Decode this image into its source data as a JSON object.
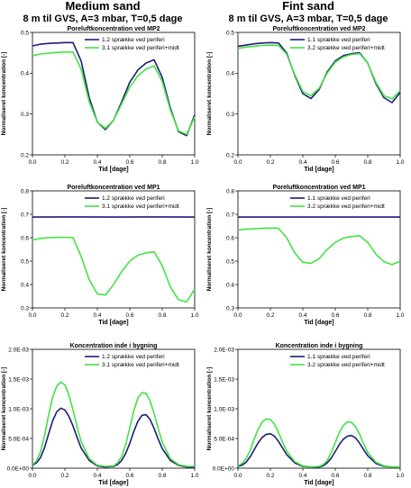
{
  "columns": {
    "left": {
      "title": "Medium sand",
      "subtitle": "8 m til GVS, A=3 mbar, T=0,5 dage"
    },
    "right": {
      "title": "Fint sand",
      "subtitle": "8 m til GVS, A=3 mbar, T=0,5 dage"
    }
  },
  "colors": {
    "blue": "#1c1c78",
    "green": "#44e244"
  },
  "chart_data": [
    {
      "id": "p1",
      "type": "line",
      "title": "Poreluftkoncentration ved MP2",
      "xlabel": "Tid [dage]",
      "ylabel": "Normaliseret koncentration [-]",
      "xlim": [
        0,
        1
      ],
      "ylim": [
        0.2,
        0.5
      ],
      "xticks": [
        "0.0",
        "0.2",
        "0.4",
        "0.6",
        "0.8",
        "1.0"
      ],
      "yticks": [
        "0.2",
        "0.3",
        "0.4",
        "0.5"
      ],
      "legend": "top-right",
      "series": [
        {
          "name": "1.2 sprække ved periferi",
          "color": "#1c1c78",
          "x": [
            0,
            0.05,
            0.1,
            0.15,
            0.2,
            0.25,
            0.3,
            0.35,
            0.4,
            0.45,
            0.5,
            0.55,
            0.6,
            0.65,
            0.7,
            0.75,
            0.8,
            0.85,
            0.9,
            0.95,
            1.0
          ],
          "y": [
            0.467,
            0.471,
            0.473,
            0.474,
            0.475,
            0.475,
            0.43,
            0.34,
            0.28,
            0.262,
            0.285,
            0.33,
            0.378,
            0.408,
            0.425,
            0.433,
            0.39,
            0.315,
            0.257,
            0.247,
            0.298
          ]
        },
        {
          "name": "3.1 sprække ved periferi+midt",
          "color": "#44e244",
          "x": [
            0,
            0.05,
            0.1,
            0.15,
            0.2,
            0.25,
            0.3,
            0.35,
            0.4,
            0.45,
            0.5,
            0.55,
            0.6,
            0.65,
            0.7,
            0.75,
            0.8,
            0.85,
            0.9,
            0.95,
            1.0
          ],
          "y": [
            0.443,
            0.447,
            0.449,
            0.451,
            0.452,
            0.452,
            0.41,
            0.33,
            0.28,
            0.265,
            0.285,
            0.325,
            0.366,
            0.394,
            0.41,
            0.418,
            0.38,
            0.31,
            0.259,
            0.25,
            0.293
          ]
        }
      ]
    },
    {
      "id": "p2",
      "type": "line",
      "title": "Poreluftkoncentration ved MP2",
      "xlabel": "Tid [dage]",
      "ylabel": "Normaliseret koncentration [-]",
      "xlim": [
        0,
        1
      ],
      "ylim": [
        0.2,
        0.5
      ],
      "xticks": [
        "0.0",
        "0.2",
        "0.4",
        "0.6",
        "0.8",
        "1.0"
      ],
      "yticks": [
        "0.2",
        "0.3",
        "0.4",
        "0.5"
      ],
      "legend": "top-right",
      "series": [
        {
          "name": "1.1 sprække ved periferi",
          "color": "#1c1c78",
          "x": [
            0,
            0.05,
            0.1,
            0.15,
            0.2,
            0.25,
            0.3,
            0.35,
            0.4,
            0.45,
            0.5,
            0.55,
            0.6,
            0.65,
            0.7,
            0.75,
            0.8,
            0.85,
            0.9,
            0.95,
            1.0
          ],
          "y": [
            0.466,
            0.469,
            0.472,
            0.474,
            0.475,
            0.474,
            0.45,
            0.395,
            0.35,
            0.338,
            0.36,
            0.403,
            0.43,
            0.443,
            0.448,
            0.45,
            0.425,
            0.375,
            0.34,
            0.328,
            0.353
          ]
        },
        {
          "name": "3.2 sprække ved periferi+midt",
          "color": "#44e244",
          "x": [
            0,
            0.05,
            0.1,
            0.15,
            0.2,
            0.25,
            0.3,
            0.35,
            0.4,
            0.45,
            0.5,
            0.55,
            0.6,
            0.65,
            0.7,
            0.75,
            0.8,
            0.85,
            0.9,
            0.95,
            1.0
          ],
          "y": [
            0.461,
            0.464,
            0.466,
            0.468,
            0.469,
            0.468,
            0.447,
            0.397,
            0.355,
            0.345,
            0.363,
            0.4,
            0.427,
            0.44,
            0.446,
            0.448,
            0.425,
            0.378,
            0.345,
            0.337,
            0.358
          ]
        }
      ]
    },
    {
      "id": "p3",
      "type": "line",
      "title": "Poreluftkoncentration ved MP1",
      "xlabel": "Tid [dage]",
      "ylabel": "Normaliseret koncentration [-]",
      "xlim": [
        0,
        1
      ],
      "ylim": [
        0.3,
        0.8
      ],
      "xticks": [
        "0.0",
        "0.2",
        "0.4",
        "0.6",
        "0.8",
        "1.0"
      ],
      "yticks": [
        "0.3",
        "0.4",
        "0.5",
        "0.6",
        "0.7",
        "0.8"
      ],
      "legend": "top-right",
      "series": [
        {
          "name": "1.2 sprække ved periferi",
          "color": "#1c1c78",
          "x": [
            0,
            0.25,
            0.5,
            0.75,
            1.0
          ],
          "y": [
            0.688,
            0.689,
            0.688,
            0.689,
            0.688
          ]
        },
        {
          "name": "3.1 sprække ved periferi+midt",
          "color": "#44e244",
          "x": [
            0,
            0.05,
            0.1,
            0.15,
            0.2,
            0.25,
            0.3,
            0.35,
            0.4,
            0.45,
            0.5,
            0.55,
            0.6,
            0.65,
            0.7,
            0.75,
            0.8,
            0.85,
            0.9,
            0.95,
            1.0
          ],
          "y": [
            0.59,
            0.597,
            0.6,
            0.601,
            0.602,
            0.6,
            0.52,
            0.42,
            0.36,
            0.355,
            0.4,
            0.455,
            0.5,
            0.525,
            0.535,
            0.54,
            0.48,
            0.39,
            0.335,
            0.325,
            0.38
          ]
        }
      ]
    },
    {
      "id": "p4",
      "type": "line",
      "title": "Poreluftkoncentration ved MP1",
      "xlabel": "Tid [dage]",
      "ylabel": "Normaliseret koncentration [-]",
      "xlim": [
        0,
        1
      ],
      "ylim": [
        0.3,
        0.8
      ],
      "xticks": [
        "0.0",
        "0.2",
        "0.4",
        "0.6",
        "0.8",
        "1.0"
      ],
      "yticks": [
        "0.3",
        "0.4",
        "0.5",
        "0.6",
        "0.7",
        "0.8"
      ],
      "legend": "top-right",
      "series": [
        {
          "name": "1.1 sprække ved periferi",
          "color": "#1c1c78",
          "x": [
            0,
            0.25,
            0.5,
            0.75,
            1.0
          ],
          "y": [
            0.688,
            0.688,
            0.688,
            0.688,
            0.688
          ]
        },
        {
          "name": "3.2 sprække ved periferi+midt",
          "color": "#44e244",
          "x": [
            0,
            0.05,
            0.1,
            0.15,
            0.2,
            0.25,
            0.3,
            0.35,
            0.4,
            0.45,
            0.5,
            0.55,
            0.6,
            0.65,
            0.7,
            0.75,
            0.8,
            0.85,
            0.9,
            0.95,
            1.0
          ],
          "y": [
            0.632,
            0.636,
            0.638,
            0.64,
            0.641,
            0.64,
            0.6,
            0.535,
            0.495,
            0.49,
            0.51,
            0.55,
            0.58,
            0.598,
            0.605,
            0.608,
            0.58,
            0.53,
            0.497,
            0.485,
            0.5
          ]
        }
      ]
    },
    {
      "id": "p5",
      "type": "line",
      "title": "Koncentration inde i bygning",
      "xlabel": "Tid [dage]",
      "ylabel": "Normaliseret koncentration [-]",
      "xlim": [
        0,
        1
      ],
      "ylim": [
        0,
        0.002
      ],
      "xticks": [
        "0.0",
        "0.2",
        "0.4",
        "0.6",
        "0.8",
        "1.0"
      ],
      "yticks": [
        "0.0E+00",
        "5.0E-04",
        "1.0E-03",
        "1.5E-03",
        "2.0E-03"
      ],
      "legend": "top-right",
      "series": [
        {
          "name": "1.2 sprække ved periferi",
          "color": "#1c1c78",
          "x": [
            0,
            0.025,
            0.05,
            0.075,
            0.1,
            0.125,
            0.15,
            0.175,
            0.2,
            0.225,
            0.25,
            0.275,
            0.3,
            0.35,
            0.4,
            0.45,
            0.5,
            0.525,
            0.55,
            0.575,
            0.6,
            0.625,
            0.65,
            0.675,
            0.7,
            0.725,
            0.75,
            0.775,
            0.8,
            0.85,
            0.9,
            0.95,
            1.0
          ],
          "y": [
            5e-05,
            9e-05,
            0.00018,
            0.00035,
            0.00058,
            0.0008,
            0.00095,
            0.00101,
            0.00098,
            0.00087,
            0.00071,
            0.00052,
            0.00034,
            0.00013,
            4e-05,
            2e-05,
            3e-05,
            6e-05,
            0.00013,
            0.00025,
            0.00042,
            0.00062,
            0.00079,
            0.00089,
            0.0009,
            0.00082,
            0.00067,
            0.00049,
            0.00033,
            0.00013,
            5e-05,
            2e-05,
            2e-05
          ]
        },
        {
          "name": "3.1 sprække ved periferi+midt",
          "color": "#44e244",
          "x": [
            0,
            0.025,
            0.05,
            0.075,
            0.1,
            0.125,
            0.15,
            0.175,
            0.2,
            0.225,
            0.25,
            0.275,
            0.3,
            0.35,
            0.4,
            0.45,
            0.5,
            0.525,
            0.55,
            0.575,
            0.6,
            0.625,
            0.65,
            0.675,
            0.7,
            0.725,
            0.75,
            0.775,
            0.8,
            0.85,
            0.9,
            0.95,
            1.0
          ],
          "y": [
            6e-05,
            0.00012,
            0.00028,
            0.00055,
            0.0009,
            0.0012,
            0.00138,
            0.00145,
            0.0014,
            0.00123,
            0.00098,
            0.0007,
            0.00045,
            0.00016,
            5e-05,
            3e-05,
            4e-05,
            9e-05,
            0.0002,
            0.0004,
            0.00068,
            0.00097,
            0.00118,
            0.00127,
            0.00126,
            0.00113,
            0.00092,
            0.00067,
            0.00044,
            0.00016,
            6e-05,
            3e-05,
            3e-05
          ]
        }
      ]
    },
    {
      "id": "p6",
      "type": "line",
      "title": "Koncentration inde i bygning",
      "xlabel": "Tid [dage]",
      "ylabel": "Normaliseret koncentration [-]",
      "xlim": [
        0,
        1
      ],
      "ylim": [
        0,
        0.002
      ],
      "xticks": [
        "0.0",
        "0.2",
        "0.4",
        "0.6",
        "0.8",
        "1.0"
      ],
      "yticks": [
        "0.0E+00",
        "5.0E-04",
        "1.0E-03",
        "1.5E-03",
        "2.0E-03"
      ],
      "legend": "top-right",
      "series": [
        {
          "name": "1.1 sprække ved periferi",
          "color": "#1c1c78",
          "x": [
            0,
            0.025,
            0.05,
            0.075,
            0.1,
            0.125,
            0.15,
            0.175,
            0.2,
            0.225,
            0.25,
            0.275,
            0.3,
            0.35,
            0.4,
            0.45,
            0.5,
            0.525,
            0.55,
            0.575,
            0.6,
            0.625,
            0.65,
            0.675,
            0.7,
            0.725,
            0.75,
            0.775,
            0.8,
            0.85,
            0.9,
            0.95,
            1.0
          ],
          "y": [
            3e-05,
            5e-05,
            0.0001,
            0.00019,
            0.00031,
            0.00043,
            0.00052,
            0.00057,
            0.00058,
            0.00054,
            0.00045,
            0.00034,
            0.00023,
            9e-05,
            3e-05,
            2e-05,
            2e-05,
            4e-05,
            9e-05,
            0.00017,
            0.00028,
            0.0004,
            0.00049,
            0.00054,
            0.00055,
            0.00051,
            0.00042,
            0.00031,
            0.00021,
            8e-05,
            3e-05,
            2e-05,
            2e-05
          ]
        },
        {
          "name": "3.2 sprække ved periferi+midt",
          "color": "#44e244",
          "x": [
            0,
            0.025,
            0.05,
            0.075,
            0.1,
            0.125,
            0.15,
            0.175,
            0.2,
            0.225,
            0.25,
            0.275,
            0.3,
            0.35,
            0.4,
            0.45,
            0.5,
            0.525,
            0.55,
            0.575,
            0.6,
            0.625,
            0.65,
            0.675,
            0.7,
            0.725,
            0.75,
            0.775,
            0.8,
            0.85,
            0.9,
            0.95,
            1.0
          ],
          "y": [
            4e-05,
            8e-05,
            0.00016,
            0.0003,
            0.00049,
            0.00066,
            0.00078,
            0.00083,
            0.00082,
            0.00074,
            0.0006,
            0.00044,
            0.00029,
            0.00011,
            4e-05,
            2e-05,
            3e-05,
            6e-05,
            0.00013,
            0.00026,
            0.00043,
            0.0006,
            0.00072,
            0.00078,
            0.00077,
            0.0007,
            0.00057,
            0.00041,
            0.00027,
            0.0001,
            4e-05,
            2e-05,
            2e-05
          ]
        }
      ]
    }
  ]
}
